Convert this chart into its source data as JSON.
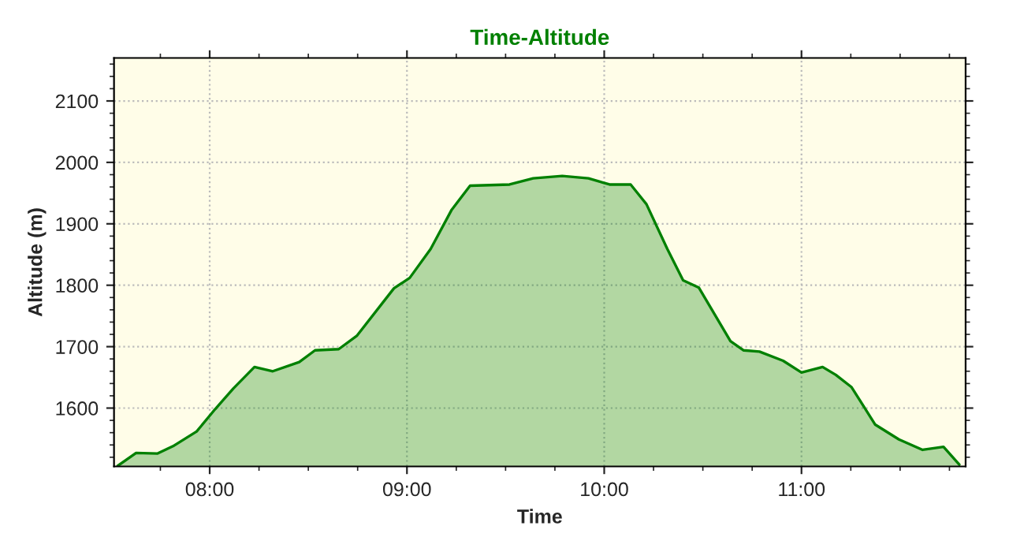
{
  "chart_data": {
    "type": "area",
    "title": "Time-Altitude",
    "xlabel": "Time",
    "ylabel": "Altitude (m)",
    "xlim": [
      7.515,
      11.832
    ],
    "ylim": [
      1505,
      2170
    ],
    "xticks": [
      {
        "value": 8,
        "label": "08:00"
      },
      {
        "value": 9,
        "label": "09:00"
      },
      {
        "value": 10,
        "label": "10:00"
      },
      {
        "value": 11,
        "label": "11:00"
      }
    ],
    "yticks": [
      1600,
      1700,
      1800,
      1900,
      2000,
      2100
    ],
    "grid": true,
    "line_style": "solid",
    "series": [
      {
        "color": "#008000",
        "x": [
          7.534,
          7.627,
          7.734,
          7.814,
          7.934,
          8.027,
          8.12,
          8.227,
          8.32,
          8.454,
          8.534,
          8.654,
          8.747,
          8.934,
          9.014,
          9.12,
          9.227,
          9.32,
          9.52,
          9.64,
          9.787,
          9.92,
          10.027,
          10.134,
          10.214,
          10.32,
          10.4,
          10.48,
          10.64,
          10.707,
          10.787,
          10.907,
          11.0,
          11.107,
          11.174,
          11.254,
          11.374,
          11.494,
          11.614,
          11.72,
          11.8
        ],
        "values": [
          1506,
          1527,
          1526,
          1538,
          1562,
          1598,
          1632,
          1667,
          1660,
          1675,
          1694,
          1696,
          1718,
          1795,
          1812,
          1859,
          1923,
          1962,
          1964,
          1974,
          1978,
          1974,
          1964,
          1964,
          1932,
          1859,
          1808,
          1796,
          1709,
          1694,
          1692,
          1677,
          1658,
          1667,
          1654,
          1634,
          1573,
          1549,
          1532,
          1537,
          1508
        ]
      }
    ]
  }
}
